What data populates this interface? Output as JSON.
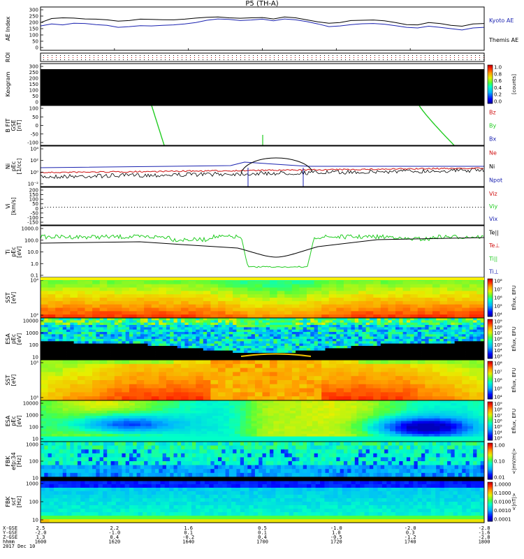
{
  "title": "P5 (TH-A)",
  "colors": {
    "kyoto": "#1a22b0",
    "themis": "#000000",
    "bz": "#d01010",
    "by": "#22cc22",
    "bx": "#1a22b0"
  },
  "chart_data": [
    {
      "id": "ae",
      "type": "line",
      "ylabel": "AE Index",
      "yticks": [
        "300",
        "250",
        "200",
        "150",
        "100",
        "50",
        "0"
      ],
      "ylim": [
        0,
        320
      ],
      "x": [
        1600,
        1605,
        1610,
        1615,
        1620,
        1625,
        1630,
        1635,
        1640,
        1645,
        1650,
        1655,
        1660,
        1665,
        1670,
        1675,
        1680,
        1685,
        1690,
        1695,
        1700,
        1705,
        1710,
        1715,
        1720,
        1725,
        1730,
        1735,
        1740,
        1745,
        1750,
        1755,
        1760,
        1765,
        1770,
        1775,
        1780,
        1785,
        1790,
        1795,
        1800
      ],
      "series": [
        {
          "name": "Kyoto AE",
          "color": "#1a22b0",
          "values": [
            180,
            195,
            188,
            200,
            198,
            190,
            185,
            170,
            175,
            182,
            180,
            185,
            188,
            195,
            205,
            222,
            232,
            228,
            220,
            224,
            230,
            218,
            232,
            225,
            212,
            195,
            175,
            180,
            190,
            196,
            198,
            193,
            182,
            170,
            165,
            178,
            170,
            160,
            150,
            165,
            170
          ]
        },
        {
          "name": "Themis AE",
          "color": "#000000",
          "values": [
            205,
            235,
            240,
            238,
            232,
            230,
            225,
            215,
            220,
            230,
            228,
            226,
            225,
            230,
            238,
            244,
            246,
            240,
            237,
            240,
            242,
            232,
            246,
            240,
            225,
            210,
            200,
            205,
            220,
            222,
            224,
            218,
            205,
            190,
            188,
            205,
            198,
            185,
            178,
            195,
            198
          ]
        }
      ]
    },
    {
      "id": "roi",
      "type": "dots",
      "ylabel": "ROI"
    },
    {
      "id": "keogram",
      "type": "heatmap",
      "ylabel": "Keogram",
      "yticks": [
        "300",
        "250",
        "200",
        "150",
        "100",
        "50",
        "0"
      ],
      "colorbar_label": "[counts]",
      "colorbar_ticks": [
        "1.0",
        "0.8",
        "0.6",
        "0.4",
        "0.2",
        "0.0"
      ]
    },
    {
      "id": "bfield",
      "type": "line",
      "ylabel": "B FIT",
      "ylabel2": "GSE",
      "unit": "[nT]",
      "yticks": [
        "100",
        "50",
        "0",
        "-50",
        "-100"
      ],
      "ylim": [
        -100,
        100
      ],
      "series": [
        {
          "name": "Bz",
          "color": "#d01010"
        },
        {
          "name": "By",
          "color": "#22cc22"
        },
        {
          "name": "Bx",
          "color": "#1a22b0"
        }
      ]
    },
    {
      "id": "density",
      "type": "line",
      "ylabel": "Ni",
      "ylabel2": "pEc",
      "unit": "[1/cc]",
      "yticks": [
        "10⁴",
        "10²",
        "10⁰",
        "10⁻²"
      ],
      "series": [
        {
          "name": "Ne",
          "color": "#d01010"
        },
        {
          "name": "Ni",
          "color": "#000000"
        },
        {
          "name": "Npot",
          "color": "#1a22b0"
        }
      ]
    },
    {
      "id": "velocity",
      "type": "line",
      "ylabel": "Vi",
      "unit": "[km/s]",
      "yticks": [
        "200",
        "150",
        "100",
        "50",
        "0",
        "-50",
        "-100",
        "-150"
      ],
      "series": [
        {
          "name": "Viz",
          "color": "#d01010"
        },
        {
          "name": "Viy",
          "color": "#22cc22"
        },
        {
          "name": "Vix",
          "color": "#1a22b0"
        }
      ]
    },
    {
      "id": "temperature",
      "type": "line",
      "ylabel": "Ti",
      "ylabel2": "pEc",
      "unit": "[eV]",
      "yticks": [
        "1000.0",
        "100.0",
        "10.0",
        "1.0",
        "0.1"
      ],
      "series": [
        {
          "name": "Te||",
          "color": "#000000"
        },
        {
          "name": "Te⊥",
          "color": "#d01010"
        },
        {
          "name": "Ti||",
          "color": "#22cc22"
        },
        {
          "name": "Ti⊥",
          "color": "#1a22b0"
        }
      ]
    },
    {
      "id": "sst_e",
      "type": "heatmap",
      "ylabel": "SST",
      "unit": "[eV]",
      "yticks": [
        "10⁴",
        "10²"
      ],
      "colorbar_label": "Eflux, EFU",
      "colorbar_ticks": [
        "10⁸",
        "10⁷",
        "10⁶",
        "10⁵",
        "10⁴"
      ]
    },
    {
      "id": "esa_e",
      "type": "heatmap",
      "ylabel": "ESA",
      "ylabel2": "pEc",
      "unit": "[eV]",
      "yticks": [
        "10000",
        "1000",
        "100",
        "10"
      ],
      "colorbar_label": "Eflux, EFU",
      "colorbar_ticks": [
        "10⁹",
        "10⁸",
        "10⁷",
        "10⁶",
        "10⁵",
        "10⁴",
        "10³"
      ]
    },
    {
      "id": "sst_i",
      "type": "heatmap",
      "ylabel": "SST",
      "unit": "[eV]",
      "yticks": [
        "10⁵",
        "10⁵"
      ],
      "colorbar_label": "Eflux, EFU",
      "colorbar_ticks": [
        "10⁸",
        "10⁷",
        "10⁶",
        "10⁵",
        "10⁴"
      ]
    },
    {
      "id": "esa_i",
      "type": "heatmap",
      "ylabel": "ESA",
      "ylabel2": "pEc",
      "unit": "[eV]",
      "yticks": [
        "10000",
        "1000",
        "100",
        "10"
      ],
      "colorbar_label": "Eflux, EFU",
      "colorbar_ticks": [
        "10⁹",
        "10⁸",
        "10⁷",
        "10⁶",
        "10⁵",
        "10⁴",
        "10³"
      ]
    },
    {
      "id": "fbk_e",
      "type": "heatmap",
      "ylabel": "FBK",
      "ylabel2": "efp:34",
      "unit": "[Hz]",
      "yticks": [
        "1000",
        "100",
        "10"
      ],
      "colorbar_label": "<|mV/m|>",
      "colorbar_ticks": [
        "1.00",
        "0.10",
        "0.01"
      ]
    },
    {
      "id": "fbk_b",
      "type": "heatmap",
      "ylabel": "FBK",
      "ylabel2": "scf",
      "unit": "[Hz]",
      "yticks": [
        "1000",
        "100",
        "10"
      ],
      "colorbar_label": "<|nT|>",
      "colorbar_ticks": [
        "1.0000",
        "0.1000",
        "0.0100",
        "0.0010",
        "0.0001"
      ]
    }
  ],
  "footer": {
    "row_labels": [
      "X-GSE",
      "Y-GSE",
      "Z-GSE",
      "hhmm",
      "2017 Dec 10"
    ],
    "columns": [
      [
        "2.5",
        "-2.0",
        "1.3",
        "1600"
      ],
      [
        "2.2",
        "-1.0",
        "0.4",
        "1620"
      ],
      [
        "1.6",
        "0.1",
        "-0.2",
        "1640"
      ],
      [
        "0.5",
        "0.1",
        "0.4",
        "1700"
      ],
      [
        "-1.0",
        "1.0",
        "-0.5",
        "1720"
      ],
      [
        "-2.0",
        "0.3",
        "-1.2",
        "1740"
      ],
      [
        "-2.8",
        "-1.6",
        "-2.8",
        "1800"
      ]
    ]
  }
}
